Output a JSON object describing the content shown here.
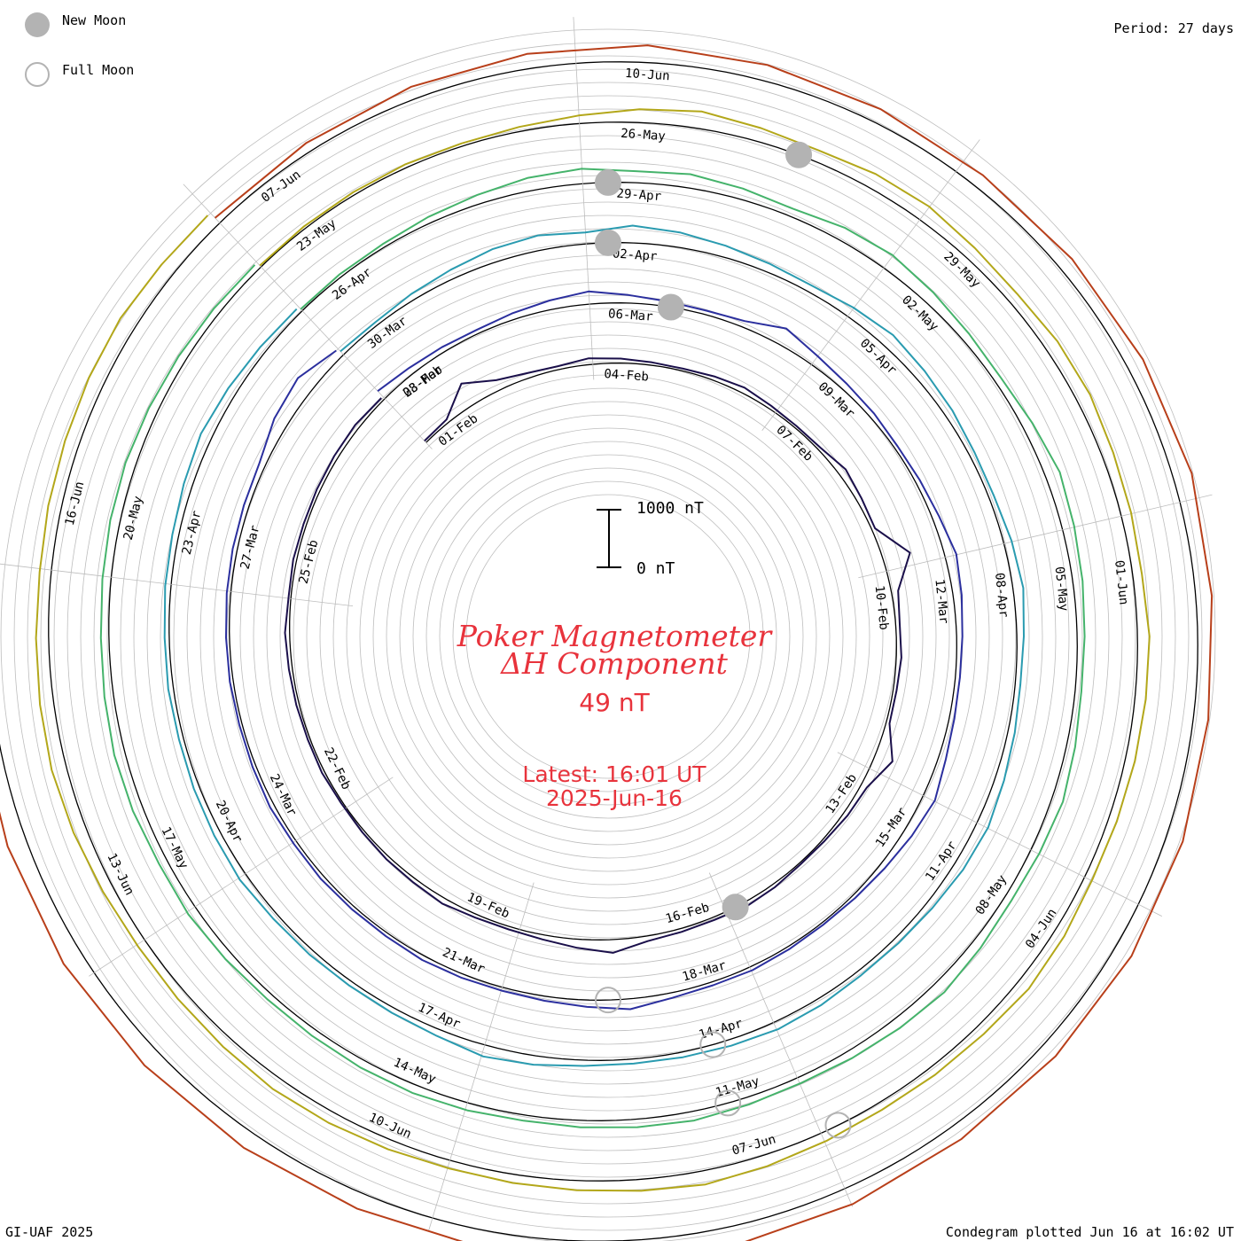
{
  "legend": {
    "new_moon": "New Moon",
    "full_moon": "Full Moon",
    "new_moon_color": "#b3b3b3",
    "full_moon_color": "#b3b3b3"
  },
  "period": "Period: 27 days",
  "footer_left": "GI-UAF 2025",
  "footer_right": "Condegram plotted Jun 16 at 16:02 UT",
  "title_line1": "Poker Magnetometer",
  "title_line2": "ΔH Component",
  "current_value": "49 nT",
  "latest_label": "Latest: 16:01 UT",
  "latest_date": "2025-Jun-16",
  "scale": {
    "top_label": "1000 nT",
    "bottom_label": "0 nT",
    "top_value": 1000,
    "bottom_value": 0
  },
  "colors": {
    "title": "#e8333c",
    "grid": "#bdbdbd",
    "baseline": "#000000"
  },
  "chart_data": {
    "type": "line",
    "title": "Poker Magnetometer ΔH Component",
    "period_days": 27,
    "units": "nT",
    "series": [
      {
        "color": "#1a0f4a",
        "date_labels": [
          "01-Feb",
          "04-Feb",
          "07-Feb",
          "10-Feb",
          "13-Feb",
          "16-Feb",
          "19-Feb",
          "22-Feb",
          "25-Feb",
          "28-Feb"
        ],
        "values": [
          40,
          60,
          420,
          180,
          90,
          60,
          110,
          80,
          50,
          40,
          70,
          100,
          60,
          40,
          50,
          140,
          90,
          60,
          480,
          120,
          70,
          90,
          60,
          60,
          320,
          110,
          80,
          40,
          30,
          60,
          80,
          50,
          60,
          90,
          230,
          150,
          80,
          50,
          60,
          100,
          70,
          60,
          40,
          30,
          50,
          40,
          50,
          60,
          80,
          40,
          60,
          50,
          60,
          70,
          80,
          50
        ]
      },
      {
        "color": "#2b2f9e",
        "date_labels": [
          "03-Mar",
          "06-Mar",
          "09-Mar",
          "12-Mar",
          "15-Mar",
          "18-Mar",
          "21-Mar",
          "24-Mar",
          "27-Mar"
        ],
        "values": [
          180,
          120,
          90,
          70,
          110,
          160,
          220,
          140,
          90,
          70,
          110,
          300,
          180,
          120,
          90,
          60,
          80,
          120,
          200,
          150,
          100,
          80,
          90,
          130,
          220,
          160,
          100,
          60,
          40,
          50,
          70,
          60,
          90,
          180,
          120,
          80,
          60,
          70,
          80,
          60,
          60,
          70,
          60,
          80,
          60,
          50,
          60,
          60,
          70,
          80,
          90,
          110,
          250,
          320,
          140
        ]
      },
      {
        "color": "#2a9bb0",
        "date_labels": [
          "30-Mar",
          "02-Apr",
          "05-Apr",
          "08-Apr",
          "11-Apr",
          "14-Apr",
          "17-Apr",
          "20-Apr",
          "23-Apr"
        ],
        "values": [
          80,
          60,
          110,
          160,
          230,
          260,
          200,
          300,
          260,
          200,
          150,
          120,
          180,
          240,
          190,
          150,
          100,
          90,
          140,
          180,
          120,
          90,
          120,
          160,
          210,
          180,
          130,
          100,
          90,
          120,
          140,
          110,
          90,
          80,
          100,
          160,
          200,
          120,
          90,
          80,
          90,
          100,
          140,
          120,
          100,
          80,
          90,
          80,
          100,
          110,
          150,
          200,
          160,
          120,
          90
        ]
      },
      {
        "color": "#45b36b",
        "date_labels": [
          "26-Apr",
          "29-Apr",
          "02-May",
          "05-May",
          "08-May",
          "11-May",
          "14-May",
          "17-May",
          "20-May"
        ],
        "values": [
          40,
          50,
          60,
          110,
          160,
          230,
          260,
          200,
          240,
          190,
          140,
          230,
          270,
          210,
          150,
          120,
          180,
          260,
          210,
          170,
          130,
          110,
          150,
          200,
          160,
          130,
          170,
          220,
          180,
          140,
          110,
          130,
          160,
          140,
          120,
          100,
          130,
          150,
          140,
          120,
          110,
          140,
          170,
          150,
          180,
          190,
          160,
          140,
          150,
          170,
          180,
          160,
          140,
          120,
          100
        ]
      },
      {
        "color": "#b3a71a",
        "date_labels": [
          "23-May",
          "26-May",
          "29-May",
          "01-Jun",
          "04-Jun",
          "07-Jun",
          "10-Jun",
          "13-Jun",
          "16-Jun"
        ],
        "values": [
          30,
          40,
          50,
          60,
          50,
          80,
          140,
          230,
          300,
          240,
          200,
          260,
          280,
          220,
          190,
          240,
          250,
          200,
          180,
          160,
          210,
          190,
          170,
          150,
          140,
          190,
          220,
          170,
          150,
          130,
          160,
          200,
          240,
          200,
          170,
          150,
          140,
          170,
          200,
          220,
          190,
          170,
          160,
          190,
          230,
          260,
          240,
          220,
          200,
          230,
          250,
          280,
          300,
          260,
          240
        ]
      },
      {
        "color": "#b83f1a",
        "date_labels": [
          "07-Jun",
          "10-Jun"
        ],
        "values": [
          120,
          160,
          220,
          260,
          300,
          280,
          250,
          230,
          260,
          300,
          330,
          280,
          260,
          300,
          320,
          290,
          270,
          300,
          340,
          320,
          300,
          280,
          300,
          330,
          360,
          340,
          320
        ]
      }
    ]
  }
}
